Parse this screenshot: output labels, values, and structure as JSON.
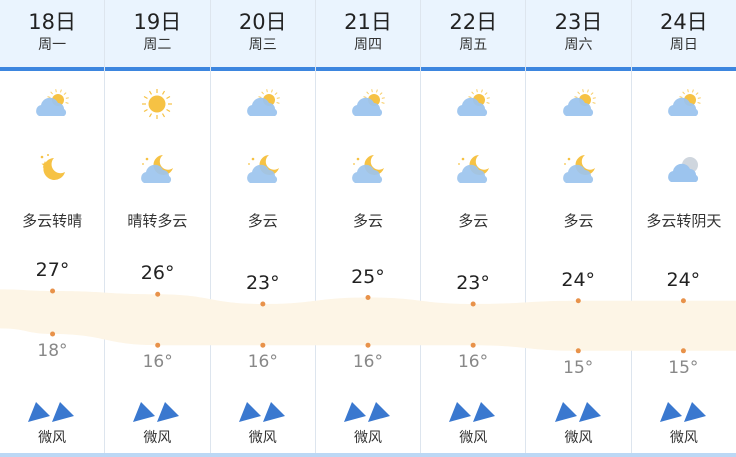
{
  "days": [
    {
      "date": "18日",
      "week": "周一",
      "day_icon": "partly-cloudy-day-icon",
      "night_icon": "clear-night-icon",
      "desc": "多云转晴",
      "high": 27,
      "high_label": "27°",
      "low": 18,
      "low_label": "18°",
      "wind": "微风"
    },
    {
      "date": "19日",
      "week": "周二",
      "day_icon": "sun-icon",
      "night_icon": "partly-cloudy-night-icon",
      "desc": "晴转多云",
      "high": 26,
      "high_label": "26°",
      "low": 16,
      "low_label": "16°",
      "wind": "微风"
    },
    {
      "date": "20日",
      "week": "周三",
      "day_icon": "partly-cloudy-day-icon",
      "night_icon": "partly-cloudy-night-icon",
      "desc": "多云",
      "high": 23,
      "high_label": "23°",
      "low": 16,
      "low_label": "16°",
      "wind": "微风"
    },
    {
      "date": "21日",
      "week": "周四",
      "day_icon": "partly-cloudy-day-icon",
      "night_icon": "partly-cloudy-night-icon",
      "desc": "多云",
      "high": 25,
      "high_label": "25°",
      "low": 16,
      "low_label": "16°",
      "wind": "微风"
    },
    {
      "date": "22日",
      "week": "周五",
      "day_icon": "partly-cloudy-day-icon",
      "night_icon": "partly-cloudy-night-icon",
      "desc": "多云",
      "high": 23,
      "high_label": "23°",
      "low": 16,
      "low_label": "16°",
      "wind": "微风"
    },
    {
      "date": "23日",
      "week": "周六",
      "day_icon": "partly-cloudy-day-icon",
      "night_icon": "partly-cloudy-night-icon",
      "desc": "多云",
      "high": 24,
      "high_label": "24°",
      "low": 15,
      "low_label": "15°",
      "wind": "微风"
    },
    {
      "date": "24日",
      "week": "周日",
      "day_icon": "partly-cloudy-day-icon",
      "night_icon": "overcast-icon",
      "desc": "多云转阴天",
      "high": 24,
      "high_label": "24°",
      "low": 15,
      "low_label": "15°",
      "wind": "微风"
    }
  ],
  "colors": {
    "header_bg": "#eaf4fe",
    "accent": "#3d86df",
    "band": "#fdf5e6",
    "dot": "#e8924a",
    "sun": "#f6c244",
    "cloud": "#9cc4ee",
    "wind_arrow": "#3a78cf"
  }
}
